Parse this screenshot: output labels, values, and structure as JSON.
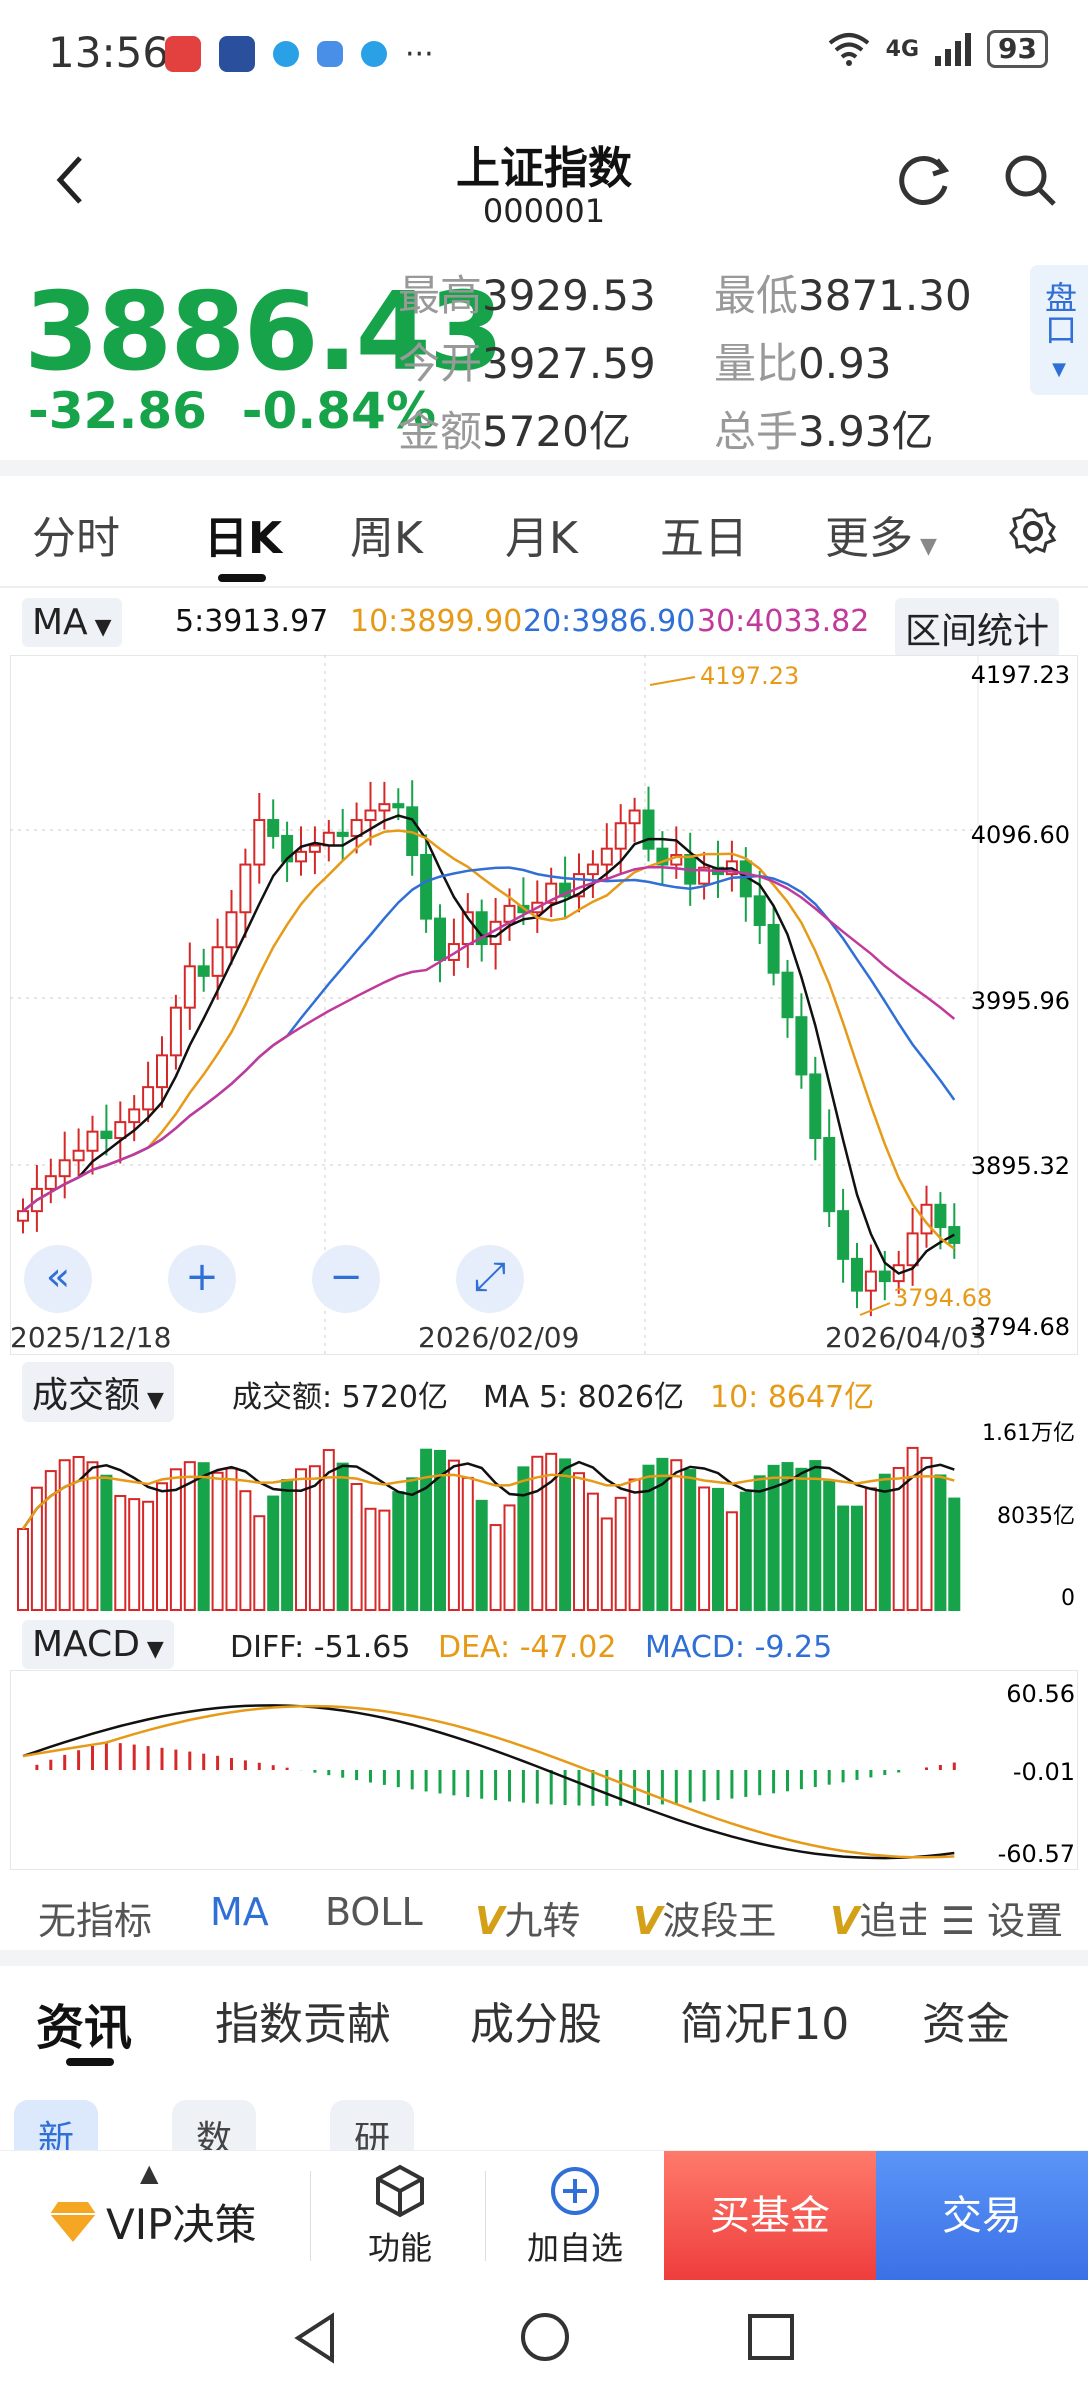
{
  "status": {
    "time": "13:56",
    "signal": "4G",
    "battery": "93"
  },
  "header": {
    "title": "上证指数",
    "code": "000001"
  },
  "quote": {
    "price": "3886.43",
    "change": "-32.86",
    "change_pct": "-0.84%",
    "stats": [
      {
        "k": "最高",
        "v": "3929.53"
      },
      {
        "k": "最低",
        "v": "3871.30"
      },
      {
        "k": "今开",
        "v": "3927.59"
      },
      {
        "k": "量比",
        "v": "0.93"
      },
      {
        "k": "金额",
        "v": "5720亿"
      },
      {
        "k": "总手",
        "v": "3.93亿"
      }
    ],
    "pankou": "盘口"
  },
  "tabs": [
    "分时",
    "日K",
    "周K",
    "月K",
    "五日",
    "更多"
  ],
  "ma_legend": {
    "selector": "MA",
    "ma5": "5:3913.97",
    "ma10": "10:3899.90",
    "ma20": "20:3986.90",
    "ma30": "30:4033.82",
    "range_btn": "区间统计"
  },
  "kline_axis": {
    "y_labels": [
      "4197.23",
      "4096.60",
      "3995.96",
      "3895.32",
      "3794.68"
    ],
    "high_mark": "4197.23",
    "low_mark": "3794.68",
    "dates": [
      "2025/12/18",
      "2026/02/09",
      "2026/04/03"
    ]
  },
  "volume": {
    "selector": "成交额",
    "value": "成交额: 5720亿",
    "ma5": "MA 5: 8026亿",
    "ma10": "10: 8647亿",
    "y_labels": [
      "1.61万亿",
      "8035亿",
      "0"
    ]
  },
  "macd": {
    "selector": "MACD",
    "diff": "DIFF: -51.65",
    "dea": "DEA: -47.02",
    "macd": "MACD: -9.25",
    "y_labels": [
      "60.56",
      "-0.01",
      "-60.57"
    ]
  },
  "indicators": [
    "无指标",
    "MA",
    "BOLL",
    "九转",
    "波段王",
    "追击",
    "设置"
  ],
  "news_tabs": [
    "资讯",
    "指数贡献",
    "成分股",
    "简况F10",
    "资金"
  ],
  "sub_tabs": [
    "新闻",
    "数据",
    "研报"
  ],
  "bottom": {
    "vip": "VIP决策",
    "func": "功能",
    "add": "加自选",
    "fund": "买基金",
    "trade": "交易"
  },
  "colors": {
    "up": "#d62828",
    "down": "#16a34a",
    "ma5": "#111111",
    "ma10": "#e69a17",
    "ma20": "#2f6fd6",
    "ma30": "#c0399b"
  }
}
